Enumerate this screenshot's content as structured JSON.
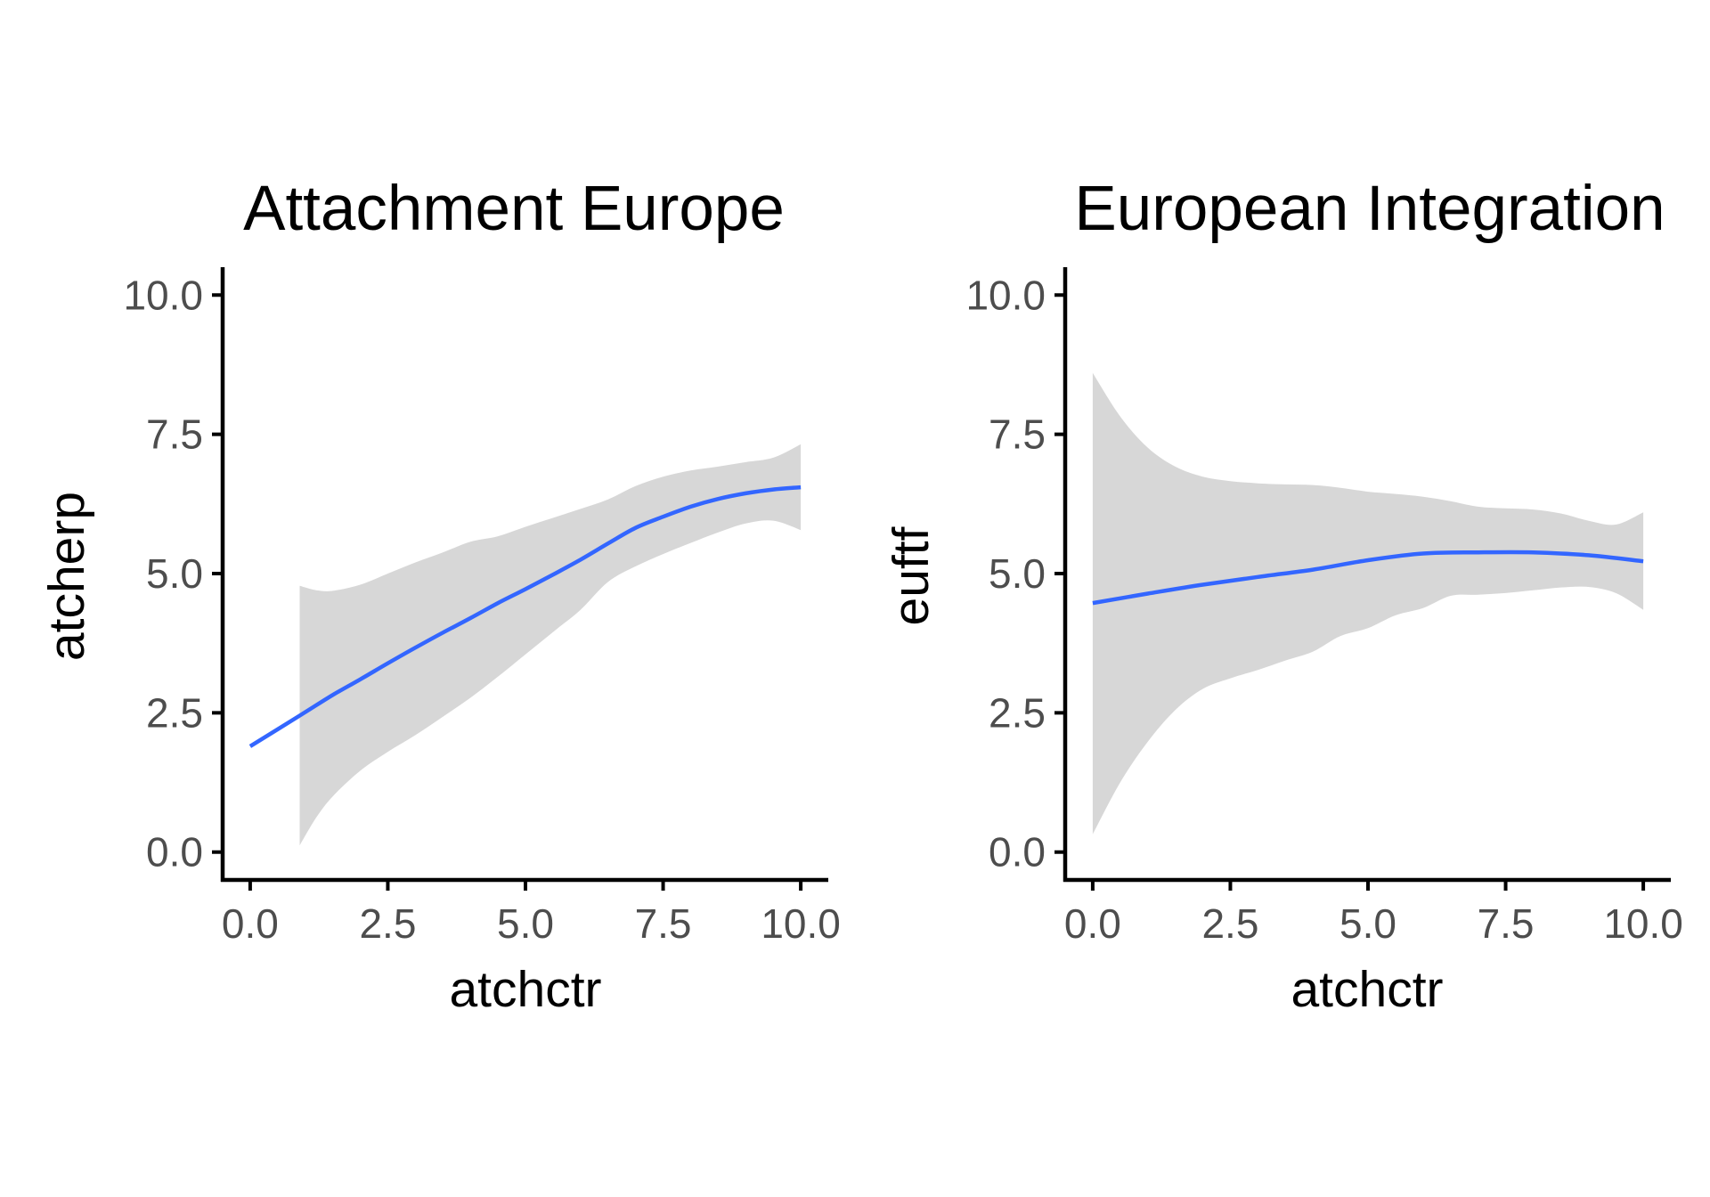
{
  "chart_data": [
    {
      "type": "line",
      "title": "Attachment Europe",
      "xlabel": "atchctr",
      "ylabel": "atcherp",
      "xlim": [
        -0.5,
        10.5
      ],
      "ylim": [
        -0.5,
        10.5
      ],
      "x_ticks": [
        0,
        2.5,
        5,
        7.5,
        10
      ],
      "x_tick_labels": [
        "0.0",
        "2.5",
        "5.0",
        "7.5",
        "10.0"
      ],
      "y_ticks": [
        0,
        2.5,
        5,
        7.5,
        10
      ],
      "y_tick_labels": [
        "0.0",
        "2.5",
        "5.0",
        "7.5",
        "10.0"
      ],
      "line_color": "#3366ff",
      "band_color": "#d7d7d7",
      "grid": false,
      "series": [
        {
          "x": [
            0,
            0.9,
            1.5,
            2,
            2.5,
            3,
            3.5,
            4,
            4.5,
            5,
            5.5,
            6,
            6.5,
            7,
            7.5,
            8,
            8.5,
            9,
            9.5,
            10
          ],
          "y": [
            1.9,
            2.45,
            2.82,
            3.1,
            3.39,
            3.67,
            3.94,
            4.2,
            4.47,
            4.72,
            4.98,
            5.25,
            5.54,
            5.82,
            6.02,
            6.2,
            6.34,
            6.44,
            6.51,
            6.55
          ]
        }
      ],
      "band": {
        "x": [
          0.9,
          1.2,
          1.5,
          2,
          2.5,
          3,
          3.5,
          4,
          4.5,
          5,
          5.5,
          6,
          6.5,
          7,
          7.5,
          8,
          8.5,
          9,
          9.5,
          10
        ],
        "lower": [
          0.12,
          0.62,
          1.0,
          1.46,
          1.8,
          2.1,
          2.43,
          2.77,
          3.15,
          3.55,
          3.95,
          4.35,
          4.85,
          5.13,
          5.35,
          5.55,
          5.74,
          5.9,
          5.95,
          5.78
        ],
        "upper": [
          4.78,
          4.7,
          4.69,
          4.8,
          5.0,
          5.2,
          5.38,
          5.57,
          5.67,
          5.84,
          6.0,
          6.16,
          6.33,
          6.57,
          6.74,
          6.85,
          6.92,
          7.0,
          7.08,
          7.32
        ]
      }
    },
    {
      "type": "line",
      "title": "European Integration",
      "xlabel": "atchctr",
      "ylabel": "euftf",
      "xlim": [
        -0.5,
        10.5
      ],
      "ylim": [
        -0.5,
        10.5
      ],
      "x_ticks": [
        0,
        2.5,
        5,
        7.5,
        10
      ],
      "x_tick_labels": [
        "0.0",
        "2.5",
        "5.0",
        "7.5",
        "10.0"
      ],
      "y_ticks": [
        0,
        2.5,
        5,
        7.5,
        10
      ],
      "y_tick_labels": [
        "0.0",
        "2.5",
        "5.0",
        "7.5",
        "10.0"
      ],
      "line_color": "#3366ff",
      "band_color": "#d7d7d7",
      "grid": false,
      "series": [
        {
          "x": [
            0,
            1,
            2,
            3,
            4,
            5,
            6,
            7,
            8,
            9,
            10
          ],
          "y": [
            4.47,
            4.64,
            4.8,
            4.94,
            5.07,
            5.24,
            5.36,
            5.38,
            5.38,
            5.33,
            5.22
          ]
        }
      ],
      "band": {
        "x": [
          0,
          0.5,
          1,
          1.5,
          2,
          2.5,
          3,
          3.5,
          4,
          4.5,
          5,
          5.5,
          6,
          6.5,
          7,
          7.5,
          8,
          8.5,
          9,
          9.5,
          10
        ],
        "lower": [
          0.32,
          1.25,
          1.98,
          2.55,
          2.93,
          3.12,
          3.27,
          3.44,
          3.6,
          3.88,
          4.02,
          4.25,
          4.38,
          4.6,
          4.62,
          4.65,
          4.7,
          4.75,
          4.76,
          4.65,
          4.35
        ],
        "upper": [
          8.6,
          7.82,
          7.26,
          6.92,
          6.74,
          6.66,
          6.62,
          6.6,
          6.59,
          6.54,
          6.47,
          6.43,
          6.38,
          6.3,
          6.2,
          6.17,
          6.15,
          6.08,
          5.95,
          5.88,
          6.1
        ]
      }
    }
  ]
}
